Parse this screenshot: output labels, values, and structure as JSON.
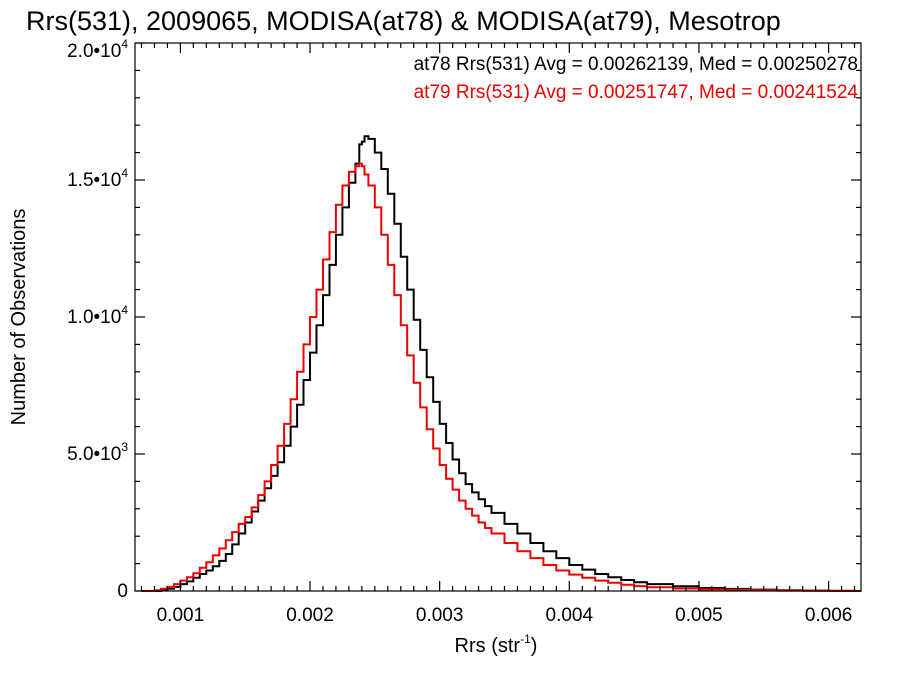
{
  "chart_data": {
    "type": "line",
    "step": true,
    "title": "Rrs(531), 2009065, MODISA(at78) & MODISA(at79), Mesotrop",
    "xlabel": "Rrs (str",
    "xlabel_sup": "-1",
    "xlabel_end": ")",
    "ylabel": "Number of Observations",
    "xlim": [
      0.00065,
      0.00625
    ],
    "ylim": [
      0,
      20000
    ],
    "grid": false,
    "x_ticks": [
      0.001,
      0.002,
      0.003,
      0.004,
      0.005,
      0.006
    ],
    "x_tick_labels": [
      "0.001",
      "0.002",
      "0.003",
      "0.004",
      "0.005",
      "0.006"
    ],
    "y_ticks": [
      0,
      5000,
      10000,
      15000,
      20000
    ],
    "y_tick_labels": [
      {
        "mantissa": "0",
        "exp": ""
      },
      {
        "mantissa": "5.0•10",
        "exp": "3"
      },
      {
        "mantissa": "1.0•10",
        "exp": "4"
      },
      {
        "mantissa": "1.5•10",
        "exp": "4"
      },
      {
        "mantissa": "2.0•10",
        "exp": "4"
      }
    ],
    "annotations": [
      {
        "text": "at78 Rrs(531) Avg = 0.00262139, Med = 0.00250278",
        "color": "#000000"
      },
      {
        "text": "at79 Rrs(531) Avg = 0.00251747, Med = 0.00241524",
        "color": "#ee0000"
      }
    ],
    "series": [
      {
        "color": "#000000",
        "x": [
          0.0007,
          0.0008,
          0.00085,
          0.0009,
          0.00095,
          0.001,
          0.00105,
          0.0011,
          0.00115,
          0.0012,
          0.00125,
          0.0013,
          0.00135,
          0.0014,
          0.00145,
          0.0015,
          0.00155,
          0.0016,
          0.00165,
          0.0017,
          0.00175,
          0.0018,
          0.00185,
          0.0019,
          0.00195,
          0.002,
          0.00205,
          0.0021,
          0.00215,
          0.0022,
          0.00225,
          0.0023,
          0.00235,
          0.00238,
          0.0024,
          0.00242,
          0.00245,
          0.0025,
          0.00255,
          0.0026,
          0.00265,
          0.0027,
          0.00275,
          0.0028,
          0.00285,
          0.0029,
          0.00295,
          0.003,
          0.00305,
          0.0031,
          0.00315,
          0.0032,
          0.00325,
          0.0033,
          0.00335,
          0.0034,
          0.0035,
          0.0036,
          0.0037,
          0.0038,
          0.0039,
          0.004,
          0.0041,
          0.0042,
          0.0043,
          0.0044,
          0.0045,
          0.0046,
          0.0048,
          0.005,
          0.0052,
          0.0054,
          0.0056,
          0.0058,
          0.006,
          0.0062
        ],
        "y": [
          0,
          0,
          30,
          80,
          150,
          250,
          350,
          480,
          620,
          750,
          900,
          1100,
          1350,
          1700,
          2100,
          2500,
          2900,
          3300,
          3750,
          4200,
          4700,
          5300,
          6000,
          6800,
          7700,
          8700,
          9700,
          10800,
          11900,
          13000,
          14000,
          14900,
          15600,
          16300,
          16400,
          16600,
          16500,
          16000,
          15400,
          14500,
          13400,
          12200,
          11000,
          9900,
          8800,
          7800,
          6900,
          6100,
          5400,
          4800,
          4300,
          3900,
          3600,
          3350,
          3100,
          2850,
          2450,
          2100,
          1750,
          1450,
          1200,
          950,
          780,
          620,
          500,
          400,
          320,
          250,
          170,
          110,
          75,
          50,
          30,
          15,
          5,
          0
        ]
      },
      {
        "color": "#ee0000",
        "x": [
          0.0007,
          0.0008,
          0.00085,
          0.0009,
          0.00095,
          0.001,
          0.00105,
          0.0011,
          0.00115,
          0.0012,
          0.00125,
          0.0013,
          0.00135,
          0.0014,
          0.00145,
          0.0015,
          0.00155,
          0.0016,
          0.00165,
          0.0017,
          0.00175,
          0.0018,
          0.00185,
          0.0019,
          0.00195,
          0.002,
          0.00205,
          0.0021,
          0.00215,
          0.0022,
          0.00225,
          0.0023,
          0.00235,
          0.00238,
          0.0024,
          0.00242,
          0.00245,
          0.0025,
          0.00255,
          0.0026,
          0.00265,
          0.0027,
          0.00275,
          0.0028,
          0.00285,
          0.0029,
          0.00295,
          0.003,
          0.00305,
          0.0031,
          0.00315,
          0.0032,
          0.00325,
          0.0033,
          0.00335,
          0.0034,
          0.0035,
          0.0036,
          0.0037,
          0.0038,
          0.0039,
          0.004,
          0.0041,
          0.0042,
          0.0043,
          0.0044,
          0.0045,
          0.0046,
          0.0048,
          0.005,
          0.0052,
          0.0054,
          0.0056,
          0.0058,
          0.006,
          0.0062
        ],
        "y": [
          0,
          30,
          80,
          150,
          250,
          380,
          500,
          650,
          850,
          1050,
          1300,
          1550,
          1850,
          2150,
          2450,
          2700,
          3050,
          3500,
          4000,
          4600,
          5300,
          6100,
          7000,
          8000,
          9000,
          10000,
          11000,
          12100,
          13100,
          14100,
          14800,
          15300,
          15500,
          15600,
          15500,
          15200,
          14800,
          14000,
          13000,
          11900,
          10800,
          9700,
          8600,
          7600,
          6700,
          5900,
          5200,
          4600,
          4100,
          3700,
          3300,
          3000,
          2750,
          2500,
          2300,
          2100,
          1750,
          1450,
          1200,
          950,
          750,
          600,
          480,
          380,
          300,
          230,
          180,
          140,
          90,
          60,
          40,
          25,
          15,
          8,
          3,
          0
        ]
      }
    ]
  }
}
